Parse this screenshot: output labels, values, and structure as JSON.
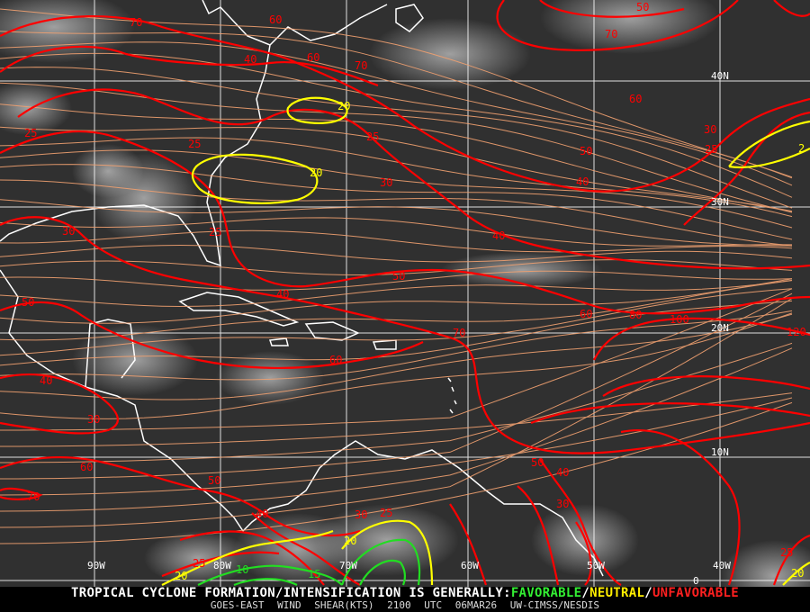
{
  "footer": {
    "headline": "TROPICAL CYCLONE FORMATION/INTENSIFICATION IS GENERALLY:",
    "favorable": "FAVORABLE",
    "sep1": "/",
    "neutral": "NEUTRAL",
    "sep2": "/",
    "unfavorable": "UNFAVORABLE",
    "product": "GOES-EAST WIND SHEAR(KTS)",
    "time": "2100 UTC",
    "date": "06MAR26",
    "source": "UW-CIMSS/NESDIS"
  },
  "grid": {
    "latitudes": [
      "40N",
      "30N",
      "20N",
      "10N",
      "0"
    ],
    "longitudes": [
      "90W",
      "80W",
      "70W",
      "60W",
      "50W",
      "40W"
    ]
  },
  "colors": {
    "unfavorable": "#ff0000",
    "neutral": "#ffff00",
    "favorable": "#22dd22",
    "streamline": "#f0a070",
    "coastline": "#ffffff",
    "grid": "#ffffff"
  },
  "contour_labels": [
    {
      "v": "70",
      "c": "red"
    },
    {
      "v": "60",
      "c": "red"
    },
    {
      "v": "50",
      "c": "red"
    },
    {
      "v": "70",
      "c": "red"
    },
    {
      "v": "40",
      "c": "red"
    },
    {
      "v": "60",
      "c": "red"
    },
    {
      "v": "70",
      "c": "red"
    },
    {
      "v": "20",
      "c": "yellow"
    },
    {
      "v": "25",
      "c": "red"
    },
    {
      "v": "25",
      "c": "red"
    },
    {
      "v": "25",
      "c": "red"
    },
    {
      "v": "20",
      "c": "yellow"
    },
    {
      "v": "60",
      "c": "red"
    },
    {
      "v": "50",
      "c": "red"
    },
    {
      "v": "40",
      "c": "red"
    },
    {
      "v": "30",
      "c": "red"
    },
    {
      "v": "30",
      "c": "red"
    },
    {
      "v": "25",
      "c": "red"
    },
    {
      "v": "2",
      "c": "yellow"
    },
    {
      "v": "30",
      "c": "red"
    },
    {
      "v": "25",
      "c": "red"
    },
    {
      "v": "40",
      "c": "red"
    },
    {
      "v": "50",
      "c": "red"
    },
    {
      "v": "40",
      "c": "red"
    },
    {
      "v": "50",
      "c": "red"
    },
    {
      "v": "60",
      "c": "red"
    },
    {
      "v": "80",
      "c": "red"
    },
    {
      "v": "100",
      "c": "red"
    },
    {
      "v": "120",
      "c": "red"
    },
    {
      "v": "70",
      "c": "red"
    },
    {
      "v": "60",
      "c": "red"
    },
    {
      "v": "40",
      "c": "red"
    },
    {
      "v": "30",
      "c": "red"
    },
    {
      "v": "60",
      "c": "red"
    },
    {
      "v": "50",
      "c": "red"
    },
    {
      "v": "50",
      "c": "red"
    },
    {
      "v": "40",
      "c": "red"
    },
    {
      "v": "70",
      "c": "red"
    },
    {
      "v": "30",
      "c": "red"
    },
    {
      "v": "40",
      "c": "red"
    },
    {
      "v": "30",
      "c": "red"
    },
    {
      "v": "25",
      "c": "red"
    },
    {
      "v": "20",
      "c": "yellow"
    },
    {
      "v": "25",
      "c": "red"
    },
    {
      "v": "10",
      "c": "green"
    },
    {
      "v": "15",
      "c": "green"
    },
    {
      "v": "20",
      "c": "yellow"
    },
    {
      "v": "25",
      "c": "red"
    },
    {
      "v": "20",
      "c": "yellow"
    }
  ]
}
